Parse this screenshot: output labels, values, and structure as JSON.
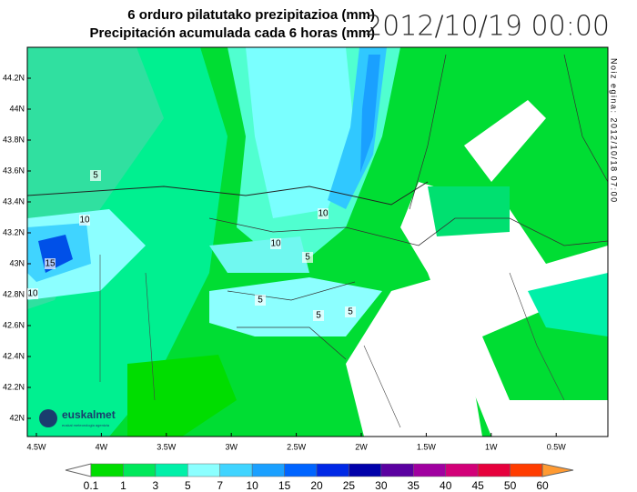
{
  "header": {
    "title_eu": "6 orduro pilatutako prezipitazioa (mm)",
    "title_es": "Precipitación acumulada cada 6 horas (mm)",
    "datetime": "2012/10/19 00:00"
  },
  "side_note": "Noiz egina: 2012/10/18 07:00",
  "map": {
    "lat_labels": [
      "44.2N",
      "44N",
      "43.8N",
      "43.6N",
      "43.4N",
      "43.2N",
      "43N",
      "42.8N",
      "42.6N",
      "42.4N",
      "42.2N",
      "42N"
    ],
    "lon_labels": [
      "4.5W",
      "4W",
      "3.5W",
      "3W",
      "2.5W",
      "2W",
      "1.5W",
      "1W",
      "0.5W"
    ],
    "contour_labels": [
      "5",
      "10",
      "15",
      "10",
      "10",
      "10",
      "5",
      "5",
      "5",
      "5"
    ]
  },
  "logo": {
    "name": "euskalmet",
    "tagline": "euskal meteorologia agentzia"
  },
  "colorbar": {
    "levels": [
      "0.1",
      "1",
      "3",
      "5",
      "7",
      "10",
      "15",
      "20",
      "25",
      "30",
      "35",
      "40",
      "45",
      "50",
      "60"
    ],
    "colors": [
      "#00dd00",
      "#00e85a",
      "#00f0a8",
      "#8cffff",
      "#40d4ff",
      "#1aa0ff",
      "#0064ff",
      "#0028e6",
      "#0000aa",
      "#5a00a0",
      "#a000a0",
      "#d20078",
      "#e6003c",
      "#ff3c00"
    ],
    "under_color": "#ffffff",
    "over_color": "#ff9a32"
  }
}
